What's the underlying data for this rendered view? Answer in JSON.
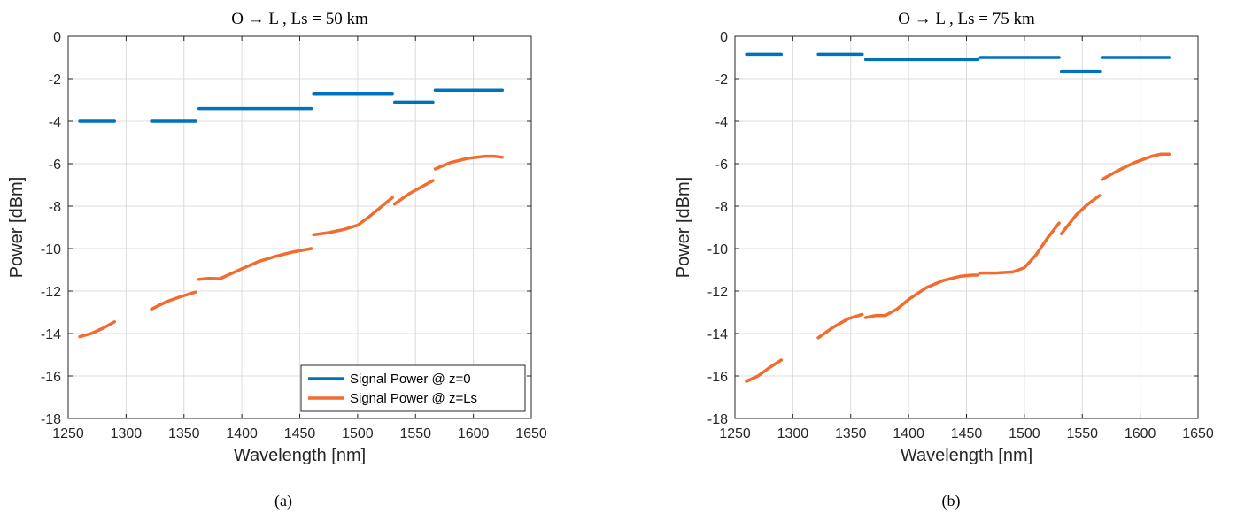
{
  "colors": {
    "series_z0": "#0072BD",
    "series_zLs": "#F26B2F",
    "grid": "#dcdcdc",
    "axis": "#262626"
  },
  "chart_data": [
    {
      "type": "line",
      "title": "O → L , Ls = 50 km",
      "caption": "(a)",
      "xlabel": "Wavelength [nm]",
      "ylabel": "Power [dBm]",
      "xlim": [
        1250,
        1650
      ],
      "ylim": [
        -18,
        0
      ],
      "xticks": [
        1250,
        1300,
        1350,
        1400,
        1450,
        1500,
        1550,
        1600,
        1650
      ],
      "yticks": [
        0,
        -2,
        -4,
        -6,
        -8,
        -10,
        -12,
        -14,
        -16,
        -18
      ],
      "grid": true,
      "legend": {
        "show": true,
        "placement": "bottom-right",
        "entries": [
          "Signal Power @ z=0",
          "Signal Power @ z=Ls"
        ]
      },
      "series": [
        {
          "name": "Signal Power @ z=0",
          "segments": [
            [
              [
                1260,
                -4.0
              ],
              [
                1290,
                -4.0
              ]
            ],
            [
              [
                1322,
                -4.0
              ],
              [
                1360,
                -4.0
              ]
            ],
            [
              [
                1363,
                -3.4
              ],
              [
                1460,
                -3.4
              ]
            ],
            [
              [
                1462,
                -2.7
              ],
              [
                1530,
                -2.7
              ]
            ],
            [
              [
                1532,
                -3.1
              ],
              [
                1565,
                -3.1
              ]
            ],
            [
              [
                1567,
                -2.55
              ],
              [
                1625,
                -2.55
              ]
            ]
          ]
        },
        {
          "name": "Signal Power @ z=Ls",
          "segments": [
            [
              [
                1260,
                -14.15
              ],
              [
                1270,
                -14.0
              ],
              [
                1280,
                -13.75
              ],
              [
                1290,
                -13.45
              ]
            ],
            [
              [
                1322,
                -12.85
              ],
              [
                1335,
                -12.5
              ],
              [
                1348,
                -12.25
              ],
              [
                1360,
                -12.05
              ]
            ],
            [
              [
                1363,
                -11.45
              ],
              [
                1372,
                -11.4
              ],
              [
                1381,
                -11.42
              ],
              [
                1390,
                -11.2
              ],
              [
                1400,
                -10.95
              ],
              [
                1415,
                -10.6
              ],
              [
                1430,
                -10.35
              ],
              [
                1445,
                -10.15
              ],
              [
                1460,
                -10.0
              ]
            ],
            [
              [
                1462,
                -9.35
              ],
              [
                1475,
                -9.25
              ],
              [
                1488,
                -9.1
              ],
              [
                1500,
                -8.9
              ],
              [
                1510,
                -8.5
              ],
              [
                1520,
                -8.05
              ],
              [
                1530,
                -7.6
              ]
            ],
            [
              [
                1532,
                -7.9
              ],
              [
                1545,
                -7.4
              ],
              [
                1555,
                -7.1
              ],
              [
                1565,
                -6.8
              ]
            ],
            [
              [
                1567,
                -6.25
              ],
              [
                1580,
                -5.95
              ],
              [
                1595,
                -5.75
              ],
              [
                1610,
                -5.65
              ],
              [
                1618,
                -5.65
              ],
              [
                1625,
                -5.7
              ]
            ]
          ]
        }
      ]
    },
    {
      "type": "line",
      "title": "O → L , Ls = 75 km",
      "caption": "(b)",
      "xlabel": "Wavelength [nm]",
      "ylabel": "Power [dBm]",
      "xlim": [
        1250,
        1650
      ],
      "ylim": [
        -18,
        0
      ],
      "xticks": [
        1250,
        1300,
        1350,
        1400,
        1450,
        1500,
        1550,
        1600,
        1650
      ],
      "yticks": [
        0,
        -2,
        -4,
        -6,
        -8,
        -10,
        -12,
        -14,
        -16,
        -18
      ],
      "grid": true,
      "legend": {
        "show": false
      },
      "series": [
        {
          "name": "Signal Power @ z=0",
          "segments": [
            [
              [
                1260,
                -0.85
              ],
              [
                1290,
                -0.85
              ]
            ],
            [
              [
                1322,
                -0.85
              ],
              [
                1360,
                -0.85
              ]
            ],
            [
              [
                1363,
                -1.1
              ],
              [
                1460,
                -1.1
              ]
            ],
            [
              [
                1462,
                -1.0
              ],
              [
                1530,
                -1.0
              ]
            ],
            [
              [
                1532,
                -1.65
              ],
              [
                1565,
                -1.65
              ]
            ],
            [
              [
                1567,
                -1.0
              ],
              [
                1625,
                -1.0
              ]
            ]
          ]
        },
        {
          "name": "Signal Power @ z=Ls",
          "segments": [
            [
              [
                1260,
                -16.25
              ],
              [
                1270,
                -16.0
              ],
              [
                1280,
                -15.6
              ],
              [
                1290,
                -15.25
              ]
            ],
            [
              [
                1322,
                -14.2
              ],
              [
                1335,
                -13.7
              ],
              [
                1348,
                -13.3
              ],
              [
                1360,
                -13.1
              ]
            ],
            [
              [
                1363,
                -13.25
              ],
              [
                1372,
                -13.15
              ],
              [
                1380,
                -13.15
              ],
              [
                1390,
                -12.85
              ],
              [
                1400,
                -12.4
              ],
              [
                1415,
                -11.85
              ],
              [
                1430,
                -11.5
              ],
              [
                1445,
                -11.3
              ],
              [
                1455,
                -11.25
              ],
              [
                1460,
                -11.25
              ]
            ],
            [
              [
                1462,
                -11.15
              ],
              [
                1475,
                -11.15
              ],
              [
                1490,
                -11.1
              ],
              [
                1500,
                -10.9
              ],
              [
                1510,
                -10.3
              ],
              [
                1520,
                -9.5
              ],
              [
                1530,
                -8.8
              ]
            ],
            [
              [
                1532,
                -9.3
              ],
              [
                1545,
                -8.4
              ],
              [
                1555,
                -7.9
              ],
              [
                1565,
                -7.5
              ]
            ],
            [
              [
                1567,
                -6.75
              ],
              [
                1580,
                -6.35
              ],
              [
                1595,
                -5.95
              ],
              [
                1610,
                -5.65
              ],
              [
                1618,
                -5.55
              ],
              [
                1625,
                -5.55
              ]
            ]
          ]
        }
      ]
    }
  ]
}
